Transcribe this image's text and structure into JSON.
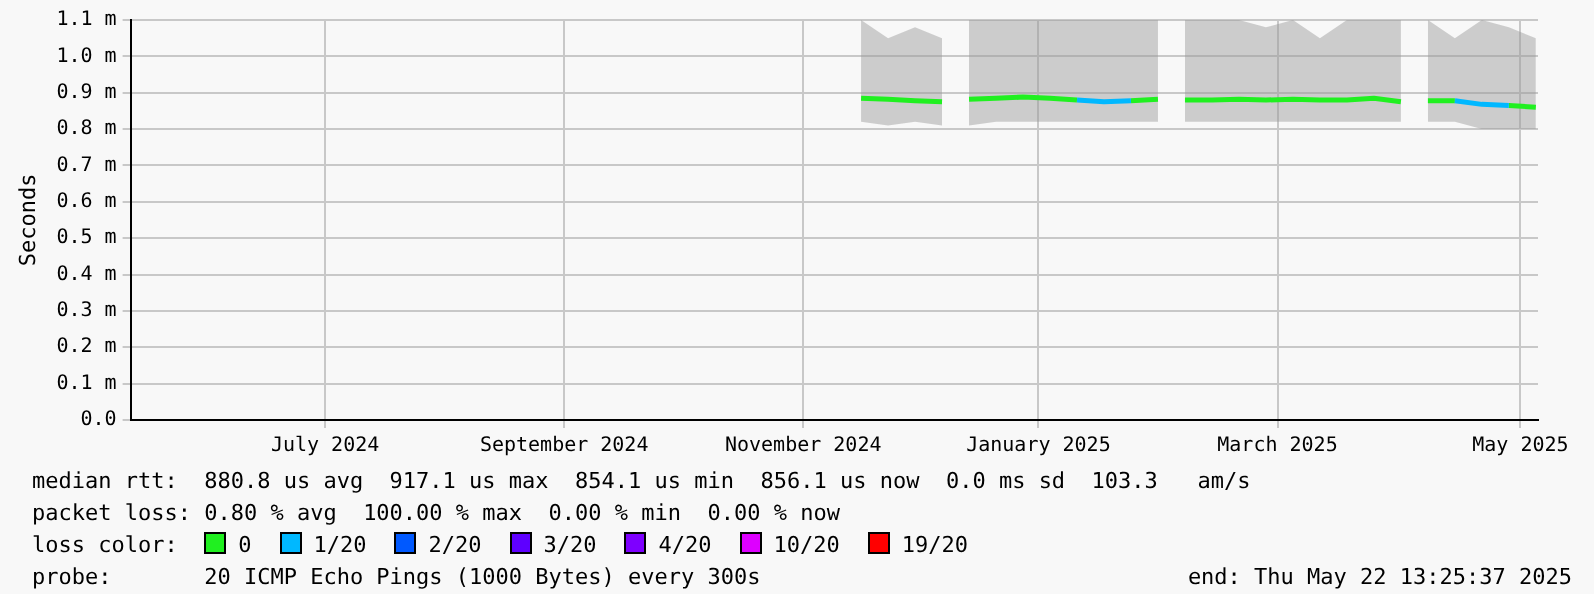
{
  "chart_data": {
    "type": "line",
    "ylabel": "Seconds",
    "x": [
      "2024-11-28",
      "2024-12-05",
      "2024-12-12",
      "2024-12-19",
      "2024-12-24",
      "2024-12-26",
      "2025-01-02",
      "2025-01-09",
      "2025-01-16",
      "2025-01-23",
      "2025-01-30",
      "2025-02-06",
      "2025-02-13",
      "2025-02-19",
      "2025-02-20",
      "2025-02-27",
      "2025-03-06",
      "2025-03-13",
      "2025-03-20",
      "2025-03-27",
      "2025-04-03",
      "2025-04-10",
      "2025-04-17",
      "2025-04-23",
      "2025-04-24",
      "2025-05-01",
      "2025-05-08",
      "2025-05-15",
      "2025-05-22"
    ],
    "series": [
      {
        "name": "0",
        "color": "#20f020",
        "values": [
          0.885,
          0.882,
          0.878,
          0.875,
          null,
          0.882,
          0.885,
          0.888,
          0.885,
          0.88,
          null,
          0.878,
          0.882,
          null,
          0.88,
          0.88,
          0.882,
          0.88,
          0.882,
          0.88,
          0.88,
          0.885,
          0.875,
          null,
          0.878,
          0.878,
          null,
          0.865,
          0.86
        ],
        "lower": [
          0.82,
          0.81,
          0.82,
          0.81,
          null,
          0.81,
          0.82,
          0.82,
          0.82,
          0.82,
          0.82,
          0.82,
          0.82,
          null,
          0.82,
          0.82,
          0.82,
          0.82,
          0.82,
          0.82,
          0.82,
          0.82,
          0.82,
          null,
          0.82,
          0.82,
          0.8,
          0.8,
          0.8
        ],
        "upper": [
          1.1,
          1.05,
          1.08,
          1.05,
          null,
          1.1,
          1.1,
          1.1,
          1.1,
          1.1,
          1.1,
          1.1,
          1.1,
          null,
          1.1,
          1.1,
          1.1,
          1.08,
          1.1,
          1.05,
          1.1,
          1.1,
          1.1,
          null,
          1.1,
          1.05,
          1.1,
          1.08,
          1.05
        ]
      },
      {
        "name": "1/20",
        "color": "#00b8ff",
        "values": [
          null,
          null,
          null,
          null,
          null,
          null,
          null,
          null,
          null,
          0.88,
          0.875,
          0.878,
          null,
          null,
          null,
          null,
          null,
          null,
          null,
          null,
          null,
          null,
          null,
          null,
          null,
          0.878,
          0.868,
          0.865,
          null
        ]
      },
      {
        "name": "2/20",
        "color": "#0059ff",
        "values": [
          null,
          null,
          null,
          null,
          null,
          null,
          null,
          null,
          null,
          null,
          null,
          null,
          null,
          null,
          null,
          null,
          null,
          null,
          null,
          null,
          null,
          null,
          null,
          null,
          null,
          null,
          null,
          null,
          null
        ]
      },
      {
        "name": "3/20",
        "color": "#5e00ff",
        "values": [
          null,
          null,
          null,
          null,
          null,
          null,
          null,
          null,
          null,
          null,
          null,
          null,
          null,
          null,
          null,
          null,
          null,
          null,
          null,
          null,
          null,
          null,
          null,
          null,
          null,
          null,
          null,
          null,
          null
        ]
      },
      {
        "name": "4/20",
        "color": "#7e00ff",
        "values": [
          null,
          null,
          null,
          null,
          null,
          null,
          null,
          null,
          null,
          null,
          null,
          null,
          null,
          null,
          null,
          null,
          null,
          null,
          null,
          null,
          null,
          null,
          null,
          null,
          null,
          null,
          null,
          null,
          null
        ]
      },
      {
        "name": "10/20",
        "color": "#dd00ff",
        "values": [
          null,
          null,
          null,
          null,
          null,
          null,
          null,
          null,
          null,
          null,
          null,
          null,
          null,
          null,
          null,
          null,
          null,
          null,
          null,
          null,
          null,
          null,
          null,
          null,
          null,
          null,
          null,
          null,
          null
        ]
      },
      {
        "name": "19/20",
        "color": "#ff0000",
        "values": [
          null,
          null,
          null,
          null,
          null,
          null,
          null,
          null,
          null,
          null,
          null,
          null,
          null,
          null,
          null,
          null,
          null,
          null,
          null,
          null,
          null,
          null,
          null,
          null,
          null,
          null,
          null,
          null,
          null
        ]
      }
    ],
    "xlim": [
      "2024-05-22T13:25",
      "2025-05-22T13:25"
    ],
    "xticks": [
      {
        "value": "2024-07-12",
        "label": "July 2024"
      },
      {
        "value": "2024-09-12",
        "label": "September 2024"
      },
      {
        "value": "2024-11-13",
        "label": "November 2024"
      },
      {
        "value": "2025-01-13",
        "label": "January 2025"
      },
      {
        "value": "2025-03-16",
        "label": "March 2025"
      },
      {
        "value": "2025-05-18",
        "label": "May 2025"
      }
    ],
    "ylim": [
      0,
      1.1
    ],
    "yticks": [
      {
        "value": 0,
        "label": "0.0"
      },
      {
        "value": 0.1,
        "label": "0.1 m"
      },
      {
        "value": 0.2,
        "label": "0.2 m"
      },
      {
        "value": 0.3,
        "label": "0.3 m"
      },
      {
        "value": 0.4,
        "label": "0.4 m"
      },
      {
        "value": 0.5,
        "label": "0.5 m"
      },
      {
        "value": 0.6,
        "label": "0.6 m"
      },
      {
        "value": 0.7,
        "label": "0.7 m"
      },
      {
        "value": 0.8,
        "label": "0.8 m"
      },
      {
        "value": 0.9,
        "label": "0.9 m"
      },
      {
        "value": 1.0,
        "label": "1.0 m"
      },
      {
        "value": 1.1,
        "label": "1.1 m"
      }
    ],
    "grid": true,
    "legend": "bottom",
    "legend_title": "loss color:",
    "marker": "none",
    "line_style": "solid",
    "annotations": [
      "median rtt:  880.8 us avg  917.1 us max  854.1 us min  856.1 us now  0.0 ms sd  103.3   am/s",
      "packet loss: 0.80 % avg  100.00 % max  0.00 % min  0.00 % now",
      "probe:       20 ICMP Echo Pings (1000 Bytes) every 300s",
      "end: Thu May 22 13:25:37 2025"
    ]
  }
}
